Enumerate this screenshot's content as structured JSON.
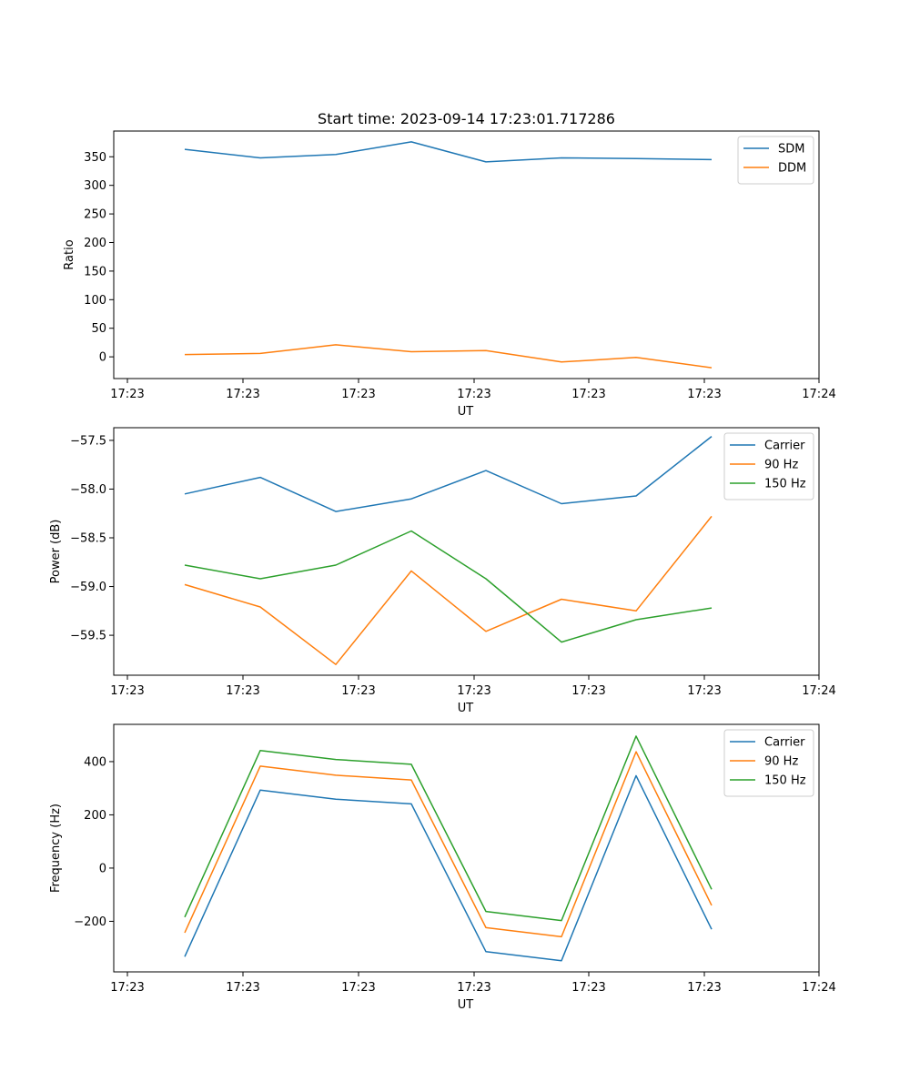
{
  "title": "Start time: 2023-09-14 17:23:01.717286",
  "chart_data": [
    {
      "type": "line",
      "xlabel": "UT",
      "ylabel": "Ratio",
      "ylim": [
        -38,
        395
      ],
      "yticks": [
        0,
        50,
        100,
        150,
        200,
        250,
        300,
        350
      ],
      "x_tick_labels": [
        "17:23",
        "17:23",
        "17:23",
        "17:23",
        "17:23",
        "17:23",
        "17:24"
      ],
      "legend_position": "top-right",
      "series": [
        {
          "name": "SDM",
          "color": "#1f77b4",
          "values": [
            363,
            348,
            354,
            376,
            341,
            348,
            347,
            345
          ]
        },
        {
          "name": "DDM",
          "color": "#ff7f0e",
          "values": [
            4,
            6,
            21,
            9,
            11,
            -9,
            -1,
            -19
          ]
        }
      ]
    },
    {
      "type": "line",
      "xlabel": "UT",
      "ylabel": "Power (dB)",
      "ylim": [
        -59.91,
        -57.37
      ],
      "yticks": [
        -59.5,
        -59.0,
        -58.5,
        -58.0,
        -57.5
      ],
      "y_tick_labels": [
        "−59.5",
        "−59.0",
        "−58.5",
        "−58.0",
        "−57.5"
      ],
      "x_tick_labels": [
        "17:23",
        "17:23",
        "17:23",
        "17:23",
        "17:23",
        "17:23",
        "17:24"
      ],
      "legend_position": "top-right",
      "series": [
        {
          "name": "Carrier",
          "color": "#1f77b4",
          "values": [
            -58.05,
            -57.88,
            -58.23,
            -58.1,
            -57.81,
            -58.15,
            -58.07,
            -57.46
          ]
        },
        {
          "name": "90 Hz",
          "color": "#ff7f0e",
          "values": [
            -58.98,
            -59.21,
            -59.8,
            -58.84,
            -59.46,
            -59.13,
            -59.25,
            -58.28
          ]
        },
        {
          "name": "150 Hz",
          "color": "#2ca02c",
          "values": [
            -58.78,
            -58.92,
            -58.78,
            -58.43,
            -58.92,
            -59.57,
            -59.34,
            -59.22
          ]
        }
      ]
    },
    {
      "type": "line",
      "xlabel": "UT",
      "ylabel": "Frequency (Hz)",
      "ylim": [
        -390,
        540
      ],
      "yticks": [
        -200,
        0,
        200,
        400
      ],
      "y_tick_labels": [
        "−200",
        "0",
        "200",
        "400"
      ],
      "x_tick_labels": [
        "17:23",
        "17:23",
        "17:23",
        "17:23",
        "17:23",
        "17:23",
        "17:24"
      ],
      "legend_position": "top-right",
      "series": [
        {
          "name": "Carrier",
          "color": "#1f77b4",
          "values": [
            -333,
            293,
            259,
            241,
            -314,
            -348,
            347,
            -230
          ]
        },
        {
          "name": "90 Hz",
          "color": "#ff7f0e",
          "values": [
            -243,
            383,
            349,
            331,
            -224,
            -258,
            437,
            -140
          ]
        },
        {
          "name": "150 Hz",
          "color": "#2ca02c",
          "values": [
            -184,
            442,
            408,
            390,
            -163,
            -197,
            496,
            -80
          ]
        }
      ]
    }
  ]
}
